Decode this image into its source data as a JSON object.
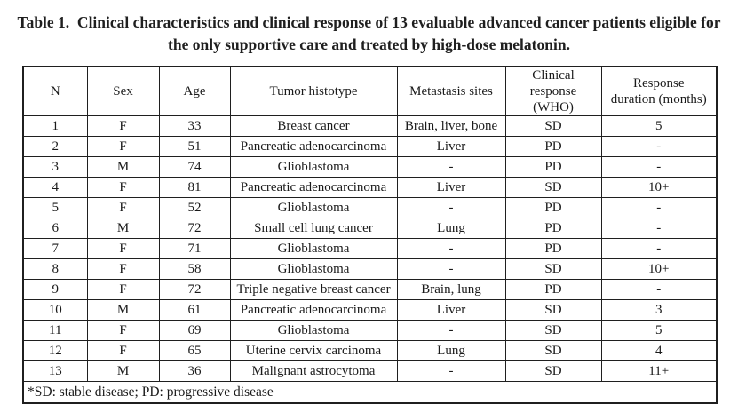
{
  "title": {
    "line1": "Table 1.  Clinical characteristics and clinical response of 13 evaluable advanced cancer patients eligible for",
    "line2": "the only supportive care and treated by high-dose melatonin."
  },
  "table": {
    "columns": [
      "N",
      "Sex",
      "Age",
      "Tumor histotype",
      "Metastasis sites",
      "Clinical response\n(WHO)",
      "Response\nduration (months)"
    ],
    "rows": [
      [
        "1",
        "F",
        "33",
        "Breast cancer",
        "Brain, liver, bone",
        "SD",
        "5"
      ],
      [
        "2",
        "F",
        "51",
        "Pancreatic adenocarcinoma",
        "Liver",
        "PD",
        "-"
      ],
      [
        "3",
        "M",
        "74",
        "Glioblastoma",
        "-",
        "PD",
        "-"
      ],
      [
        "4",
        "F",
        "81",
        "Pancreatic adenocarcinoma",
        "Liver",
        "SD",
        "10+"
      ],
      [
        "5",
        "F",
        "52",
        "Glioblastoma",
        "-",
        "PD",
        "-"
      ],
      [
        "6",
        "M",
        "72",
        "Small cell lung cancer",
        "Lung",
        "PD",
        "-"
      ],
      [
        "7",
        "F",
        "71",
        "Glioblastoma",
        "-",
        "PD",
        "-"
      ],
      [
        "8",
        "F",
        "58",
        "Glioblastoma",
        "-",
        "SD",
        "10+"
      ],
      [
        "9",
        "F",
        "72",
        "Triple negative breast cancer",
        "Brain, lung",
        "PD",
        "-"
      ],
      [
        "10",
        "M",
        "61",
        "Pancreatic adenocarcinoma",
        "Liver",
        "SD",
        "3"
      ],
      [
        "11",
        "F",
        "69",
        "Glioblastoma",
        "-",
        "SD",
        "5"
      ],
      [
        "12",
        "F",
        "65",
        "Uterine cervix carcinoma",
        "Lung",
        "SD",
        "4"
      ],
      [
        "13",
        "M",
        "36",
        "Malignant astrocytoma",
        "-",
        "SD",
        "11+"
      ]
    ],
    "footnote": "*SD: stable disease; PD: progressive disease",
    "colors": {
      "text": "#1a1a1a",
      "border": "#1f1f1f",
      "background": "#ffffff"
    }
  }
}
